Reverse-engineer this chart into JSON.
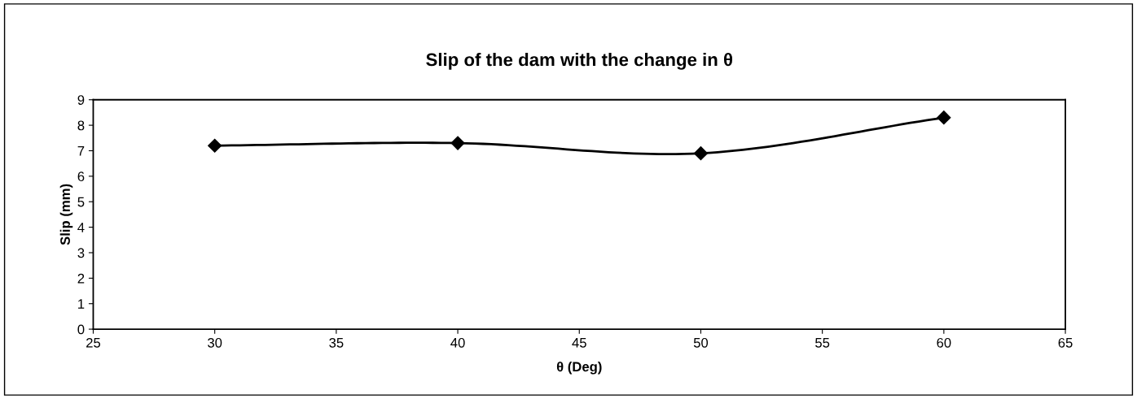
{
  "chart_data": {
    "type": "line",
    "title": "Slip of the dam with the change in θ",
    "xlabel": "θ (Deg)",
    "ylabel": "Slip (mm)",
    "x": [
      30,
      40,
      50,
      60
    ],
    "series": [
      {
        "color": "#000000",
        "values": [
          7.2,
          7.3,
          6.9,
          8.3
        ]
      }
    ],
    "xlim": [
      25,
      65
    ],
    "xticks": [
      25,
      30,
      35,
      40,
      45,
      50,
      55,
      60,
      65
    ],
    "ylim": [
      0,
      9
    ],
    "yticks": [
      0,
      1,
      2,
      3,
      4,
      5,
      6,
      7,
      8,
      9
    ],
    "marker": "diamond",
    "line_style": "solid",
    "grid": false,
    "legend": false
  }
}
